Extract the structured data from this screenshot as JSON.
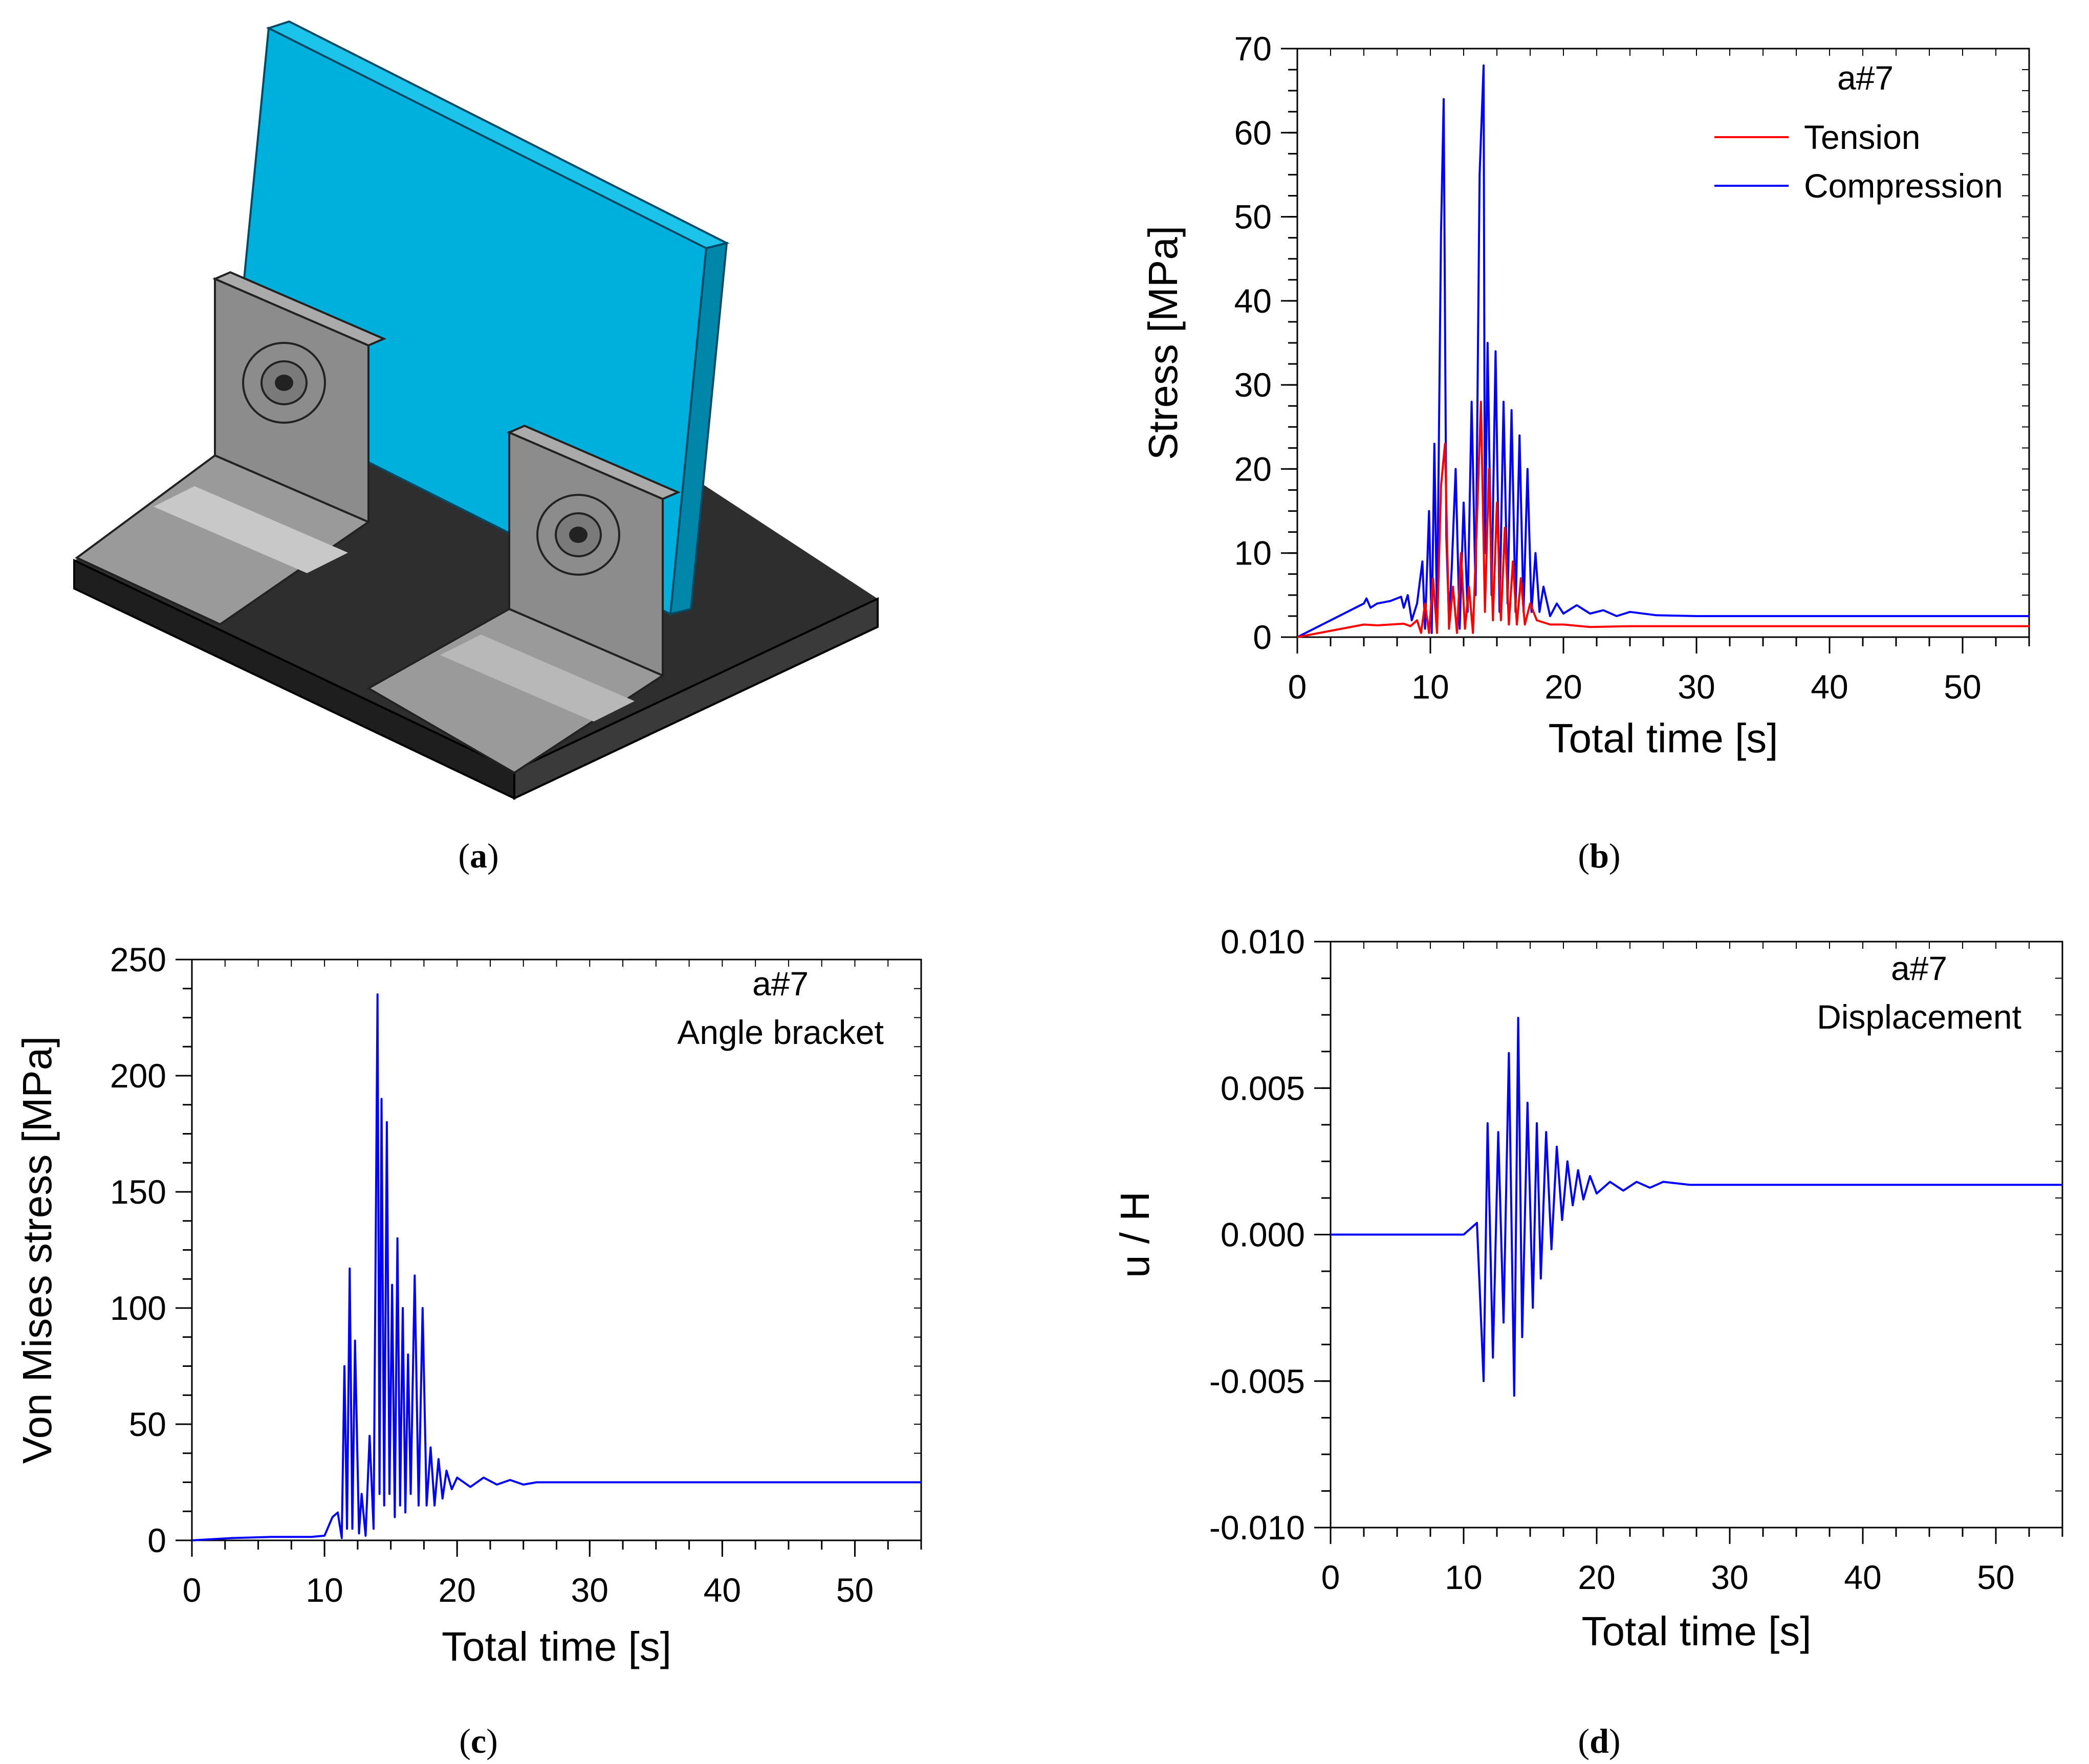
{
  "figure_a": {
    "caption": "a",
    "model": {
      "plate_color": "#00b0dc",
      "bracket_color": "#8c8c8c",
      "base_color": "#2e2e2e"
    }
  },
  "captions": [
    "a",
    "b",
    "c",
    "d"
  ],
  "colors": {
    "tension": "#ff0000",
    "compression": "#0000ff",
    "signal": "#0000ff",
    "axis": "#000000"
  },
  "chart_data": [
    {
      "id": "b",
      "caption": "b",
      "type": "line",
      "title": "a#7",
      "xlabel": "Total time  [s]",
      "ylabel": "Stress [MPa]",
      "xlim": [
        0,
        55
      ],
      "ylim": [
        0,
        70
      ],
      "xticks": [
        0,
        10,
        20,
        30,
        40,
        50
      ],
      "yticks": [
        0,
        10,
        20,
        30,
        40,
        50,
        60,
        70
      ],
      "xtick_labels": [
        "0",
        "10",
        "20",
        "30",
        "40",
        "50"
      ],
      "ytick_labels": [
        "0",
        "10",
        "20",
        "30",
        "40",
        "50",
        "60",
        "70"
      ],
      "minor_xstep": 2.5,
      "minor_ystep": 2.5,
      "legend": [
        "Tension",
        "Compression"
      ],
      "legend_position": "top-right",
      "series": [
        {
          "name": "Compression",
          "color": "#0000ff",
          "x": [
            0,
            5,
            5.2,
            5.5,
            6,
            7,
            7.8,
            8,
            8.3,
            8.6,
            9,
            9.4,
            9.6,
            9.9,
            10.1,
            10.3,
            10.5,
            10.8,
            11.0,
            11.2,
            11.4,
            11.6,
            11.9,
            12.2,
            12.5,
            12.8,
            13.1,
            13.4,
            13.7,
            14.0,
            14.1,
            14.3,
            14.6,
            14.9,
            15.2,
            15.5,
            15.8,
            16.1,
            16.4,
            16.7,
            17.0,
            17.3,
            17.6,
            17.9,
            18.2,
            18.5,
            19,
            19.5,
            20,
            21,
            22,
            23,
            24,
            25,
            27,
            30,
            35,
            40,
            45,
            50,
            55
          ],
          "y": [
            0,
            4,
            4.6,
            3.5,
            4,
            4.3,
            4.8,
            3.5,
            5,
            2,
            4,
            9,
            1,
            15,
            0.5,
            23,
            2,
            48,
            64,
            12,
            2,
            8,
            20,
            1,
            16,
            3,
            28,
            5,
            55,
            68,
            10,
            35,
            5,
            34,
            3,
            28,
            4,
            27,
            3,
            24,
            3,
            20,
            3,
            10,
            3,
            6,
            2.5,
            4,
            2.8,
            3.8,
            2.8,
            3.2,
            2.5,
            3,
            2.6,
            2.5,
            2.5,
            2.5,
            2.5,
            2.5,
            2.5
          ]
        },
        {
          "name": "Tension",
          "color": "#ff0000",
          "x": [
            0,
            5,
            6,
            7,
            8,
            8.5,
            9,
            9.3,
            9.6,
            9.9,
            10.2,
            10.5,
            10.8,
            11.1,
            11.4,
            11.7,
            12.0,
            12.3,
            12.6,
            12.9,
            13.2,
            13.5,
            13.8,
            14.1,
            14.4,
            14.7,
            15.0,
            15.3,
            15.6,
            15.9,
            16.2,
            16.5,
            16.8,
            17.1,
            17.5,
            18,
            19,
            20,
            22,
            25,
            30,
            35,
            40,
            45,
            50,
            55
          ],
          "y": [
            0,
            1.5,
            1.4,
            1.5,
            1.6,
            1.3,
            2,
            0.5,
            4,
            0.5,
            7,
            0.5,
            18,
            23,
            1,
            6,
            0.5,
            10,
            1,
            6,
            0.5,
            14,
            28,
            3,
            20,
            2,
            16,
            2,
            13,
            1.5,
            9,
            1.5,
            7,
            1.5,
            4,
            2,
            1.5,
            1.5,
            1.2,
            1.3,
            1.3,
            1.3,
            1.3,
            1.3,
            1.3,
            1.3
          ]
        }
      ]
    },
    {
      "id": "c",
      "caption": "c",
      "type": "line",
      "title": "a#7",
      "subtitle": "Angle bracket",
      "xlabel": "Total time  [s]",
      "ylabel": "Von Mises stress [MPa]",
      "xlim": [
        0,
        55
      ],
      "ylim": [
        0,
        250
      ],
      "xticks": [
        0,
        10,
        20,
        30,
        40,
        50
      ],
      "yticks": [
        0,
        50,
        100,
        150,
        200,
        250
      ],
      "xtick_labels": [
        "0",
        "10",
        "20",
        "30",
        "40",
        "50"
      ],
      "ytick_labels": [
        "0",
        "50",
        "100",
        "150",
        "200",
        "250"
      ],
      "minor_xstep": 2.5,
      "minor_ystep": 12.5,
      "series": [
        {
          "name": "Angle bracket",
          "color": "#0000ff",
          "x": [
            0,
            3,
            6,
            9,
            10,
            10.6,
            11.0,
            11.3,
            11.5,
            11.7,
            11.9,
            12.1,
            12.3,
            12.6,
            12.8,
            13.1,
            13.4,
            13.7,
            14.0,
            14.15,
            14.3,
            14.5,
            14.7,
            14.9,
            15.1,
            15.3,
            15.5,
            15.7,
            15.9,
            16.1,
            16.3,
            16.5,
            16.8,
            17.1,
            17.4,
            17.7,
            18.0,
            18.3,
            18.6,
            18.9,
            19.2,
            19.6,
            20,
            21,
            22,
            23,
            24,
            25,
            26,
            28,
            30,
            35,
            40,
            45,
            50,
            55
          ],
          "y": [
            0,
            1,
            1.5,
            1.5,
            2,
            10,
            12,
            1,
            75,
            5,
            117,
            5,
            86,
            3,
            20,
            2,
            45,
            5,
            235,
            20,
            190,
            15,
            180,
            20,
            110,
            10,
            130,
            15,
            100,
            12,
            80,
            20,
            114,
            15,
            100,
            15,
            40,
            15,
            35,
            18,
            30,
            22,
            27,
            23,
            27,
            24,
            26,
            24,
            25,
            25,
            25,
            25,
            25,
            25,
            25,
            25
          ]
        }
      ]
    },
    {
      "id": "d",
      "caption": "d",
      "type": "line",
      "title": "a#7",
      "subtitle": "Displacement",
      "xlabel": "Total time  [s]",
      "ylabel": "u / H",
      "xlim": [
        0,
        55
      ],
      "ylim": [
        -0.01,
        0.01
      ],
      "xticks": [
        0,
        10,
        20,
        30,
        40,
        50
      ],
      "yticks": [
        -0.01,
        -0.005,
        0,
        0.005,
        0.01
      ],
      "xtick_labels": [
        "0",
        "10",
        "20",
        "30",
        "40",
        "50"
      ],
      "ytick_labels": [
        "-0.010",
        "-0.005",
        "0.000",
        "0.005",
        "0.010"
      ],
      "minor_xstep": 2.5,
      "minor_ystep": 0.00125,
      "series": [
        {
          "name": "Displacement",
          "color": "#0000ff",
          "x": [
            0,
            5,
            10,
            10.5,
            11.0,
            11.5,
            11.8,
            12.2,
            12.6,
            13.0,
            13.4,
            13.8,
            14.1,
            14.4,
            14.8,
            15.2,
            15.5,
            15.8,
            16.2,
            16.6,
            17.0,
            17.4,
            17.8,
            18.2,
            18.6,
            19.0,
            19.5,
            20,
            21,
            22,
            23,
            24,
            25,
            27,
            30,
            35,
            40,
            45,
            50,
            55
          ],
          "y": [
            0,
            0,
            0,
            0.0002,
            0.0004,
            -0.005,
            0.0038,
            -0.0042,
            0.0035,
            -0.003,
            0.0062,
            -0.0055,
            0.0074,
            -0.0035,
            0.0045,
            -0.0025,
            0.0038,
            -0.0015,
            0.0035,
            -0.0005,
            0.003,
            0.0005,
            0.0025,
            0.001,
            0.0022,
            0.0012,
            0.002,
            0.0014,
            0.0018,
            0.0015,
            0.0018,
            0.0016,
            0.0018,
            0.0017,
            0.0017,
            0.0017,
            0.0017,
            0.0017,
            0.0017,
            0.0017
          ]
        }
      ]
    }
  ]
}
